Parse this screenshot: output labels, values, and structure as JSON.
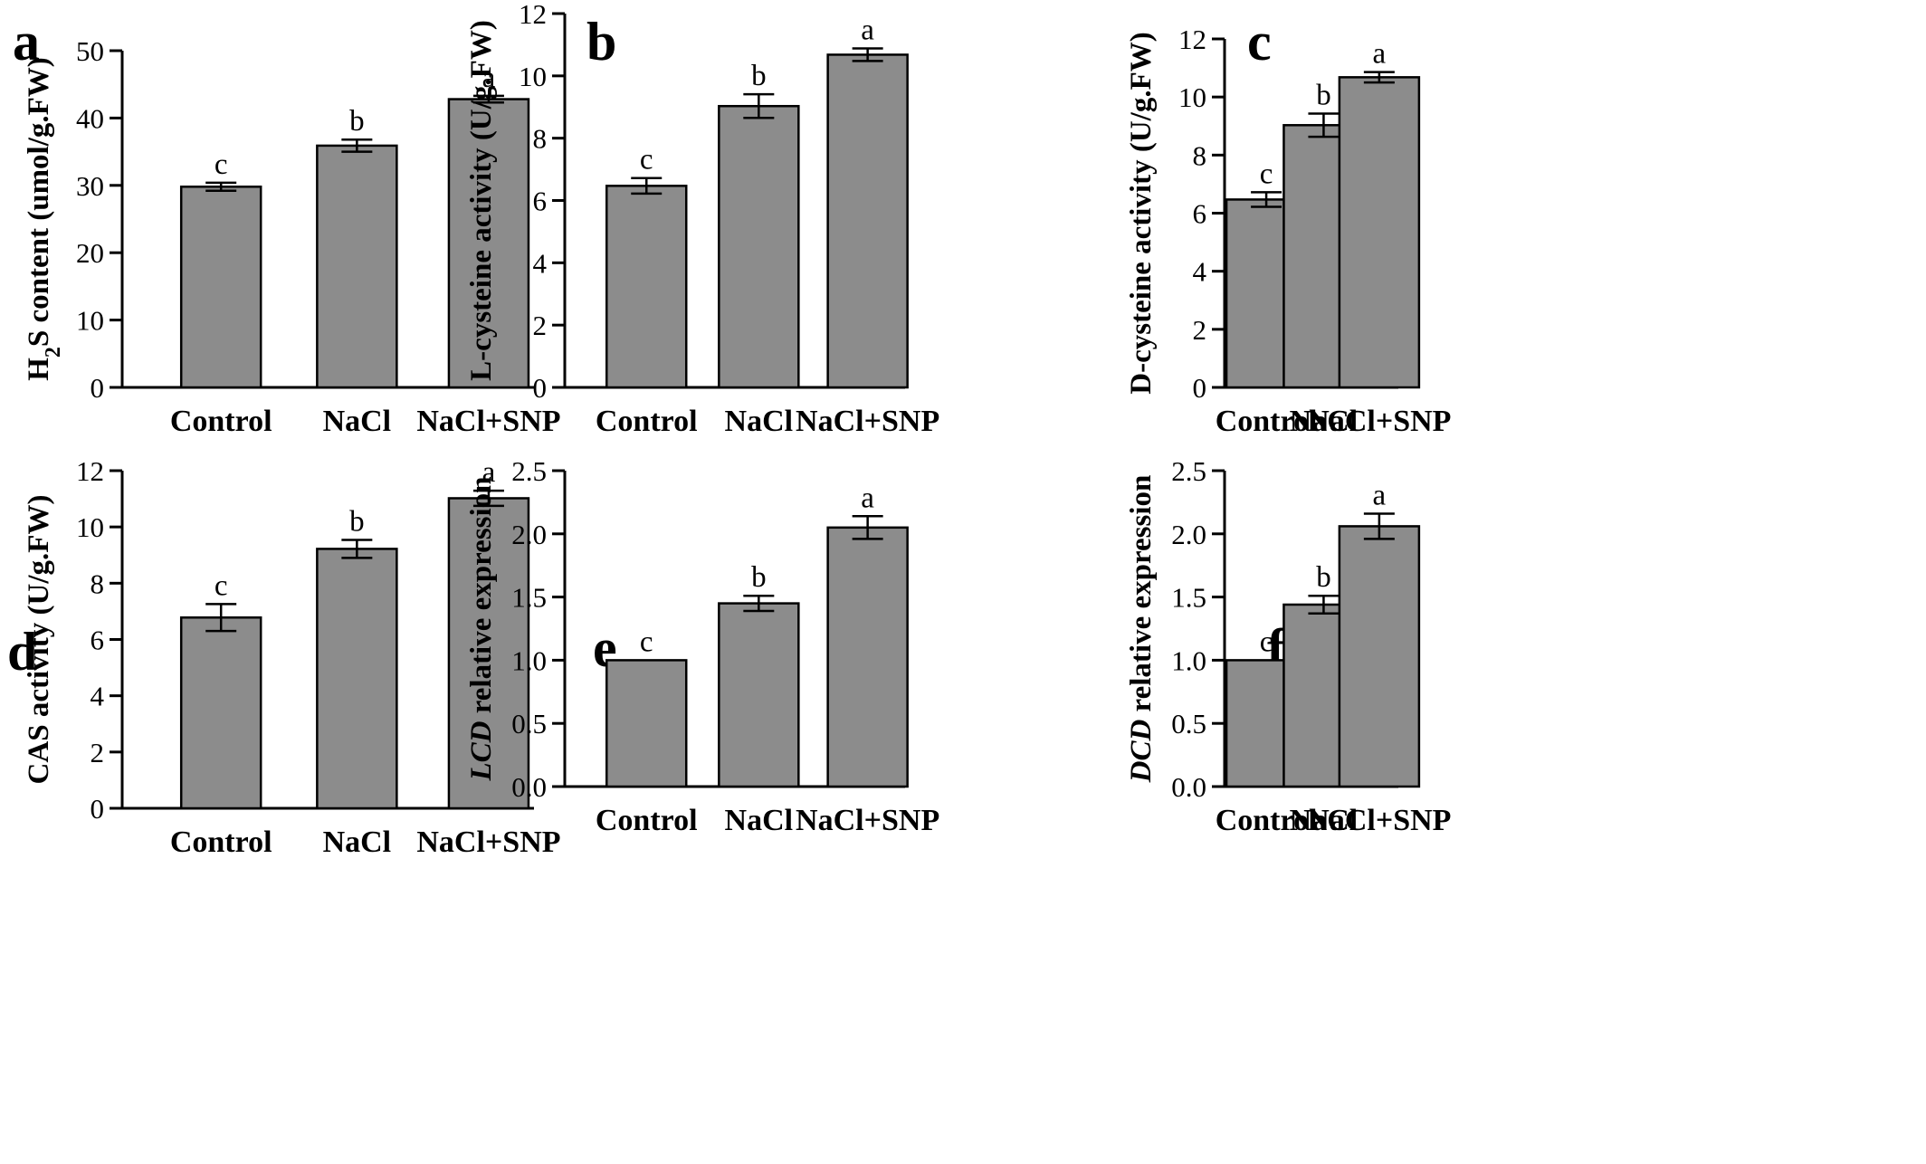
{
  "figure": {
    "panels": [
      "a",
      "b",
      "c",
      "d",
      "e",
      "f"
    ]
  },
  "chart_data": [
    {
      "type": "bar",
      "panel": "a",
      "categories": [
        "Control",
        "NaCl",
        "NaCl+SNP"
      ],
      "values": [
        29.8,
        35.9,
        42.8
      ],
      "errors": [
        0.6,
        0.9,
        0.5
      ],
      "significance": [
        "c",
        "b",
        "a"
      ],
      "ylabel_parts": [
        {
          "text": "H",
          "style": "normal"
        },
        {
          "text": "2",
          "style": "sub"
        },
        {
          "text": "S content (umol/g.FW)",
          "style": "normal"
        }
      ],
      "ylim": [
        0,
        50
      ],
      "yticks": [
        "0",
        "10",
        "20",
        "30",
        "40",
        "50"
      ],
      "bar_color": "#8c8c8c"
    },
    {
      "type": "bar",
      "panel": "b",
      "categories": [
        "Control",
        "NaCl",
        "NaCl+SNP"
      ],
      "values": [
        6.47,
        9.03,
        10.68
      ],
      "errors": [
        0.25,
        0.38,
        0.2
      ],
      "significance": [
        "c",
        "b",
        "a"
      ],
      "ylabel_parts": [
        {
          "text": "L-cysteine activity (U/g.FW)",
          "style": "normal"
        }
      ],
      "ylim": [
        0,
        12
      ],
      "yticks": [
        "0",
        "2",
        "4",
        "6",
        "8",
        "10",
        "12"
      ],
      "bar_color": "#8c8c8c"
    },
    {
      "type": "bar",
      "panel": "c",
      "categories": [
        "Control",
        "NaCl",
        "NaCl+SNP"
      ],
      "values": [
        6.47,
        9.03,
        10.68
      ],
      "errors": [
        0.25,
        0.4,
        0.18
      ],
      "significance": [
        "c",
        "b",
        "a"
      ],
      "ylabel_parts": [
        {
          "text": "D-cysteine activity (U/g.FW)",
          "style": "normal"
        }
      ],
      "ylim": [
        0,
        12
      ],
      "yticks": [
        "0",
        "2",
        "4",
        "6",
        "8",
        "10",
        "12"
      ],
      "bar_color": "#8c8c8c"
    },
    {
      "type": "bar",
      "panel": "d",
      "categories": [
        "Control",
        "NaCl",
        "NaCl+SNP"
      ],
      "values": [
        6.78,
        9.22,
        11.02
      ],
      "errors": [
        0.48,
        0.32,
        0.27
      ],
      "significance": [
        "c",
        "b",
        "a"
      ],
      "ylabel_parts": [
        {
          "text": "CAS activity (U/g.FW)",
          "style": "normal"
        }
      ],
      "ylim": [
        0,
        12
      ],
      "yticks": [
        "0",
        "2",
        "4",
        "6",
        "8",
        "10",
        "12"
      ],
      "bar_color": "#8c8c8c"
    },
    {
      "type": "bar",
      "panel": "e",
      "categories": [
        "Control",
        "NaCl",
        "NaCl+SNP"
      ],
      "values": [
        1.0,
        1.45,
        2.05
      ],
      "errors": [
        0,
        0.06,
        0.09
      ],
      "significance": [
        "c",
        "b",
        "a"
      ],
      "ylabel_parts": [
        {
          "text": "LCD",
          "style": "italic"
        },
        {
          "text": " relative expression",
          "style": "normal"
        }
      ],
      "ylim": [
        0,
        2.5
      ],
      "yticks": [
        "0.0",
        "0.5",
        "1.0",
        "1.5",
        "2.0",
        "2.5"
      ],
      "bar_color": "#8c8c8c"
    },
    {
      "type": "bar",
      "panel": "f",
      "categories": [
        "Control",
        "NaCl",
        "NaCl+SNP"
      ],
      "values": [
        1.0,
        1.44,
        2.06
      ],
      "errors": [
        0,
        0.07,
        0.1
      ],
      "significance": [
        "c",
        "b",
        "a"
      ],
      "ylabel_parts": [
        {
          "text": "DCD",
          "style": "italic"
        },
        {
          "text": " relative expression",
          "style": "normal"
        }
      ],
      "ylim": [
        0,
        2.5
      ],
      "yticks": [
        "0.0",
        "0.5",
        "1.0",
        "1.5",
        "2.0",
        "2.5"
      ],
      "bar_color": "#8c8c8c"
    }
  ]
}
